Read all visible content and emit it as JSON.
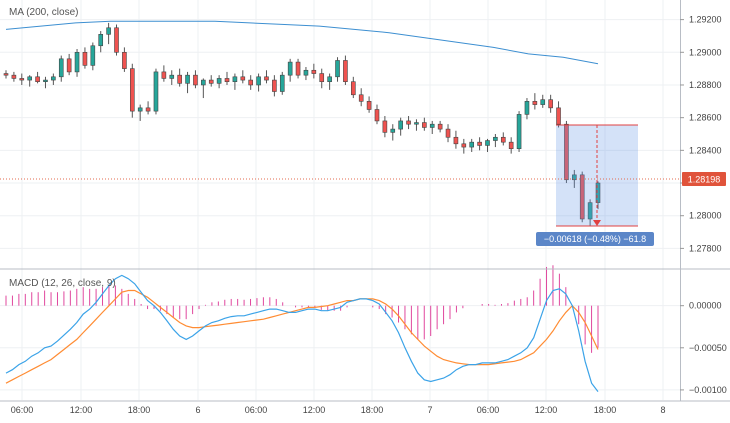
{
  "chart_data": [
    {
      "type": "candlestick",
      "indicator_label": "MA (200, close)",
      "x_tick_labels": [
        "06:00",
        "12:00",
        "18:00",
        "6",
        "06:00",
        "12:00",
        "18:00",
        "7",
        "06:00",
        "12:00",
        "18:00",
        "8"
      ],
      "y_tick_labels": [
        "1.29200",
        "1.29000",
        "1.28800",
        "1.28600",
        "1.28400",
        "1.28200",
        "1.28000",
        "1.27800"
      ],
      "ylim": [
        1.2768,
        1.2932
      ],
      "current_price": "1.28198",
      "measurement_label": "−0.00618 (−0.48%) −61.8",
      "measurement_range": {
        "from_price": 1.28555,
        "to_price": 1.27937
      },
      "ma_values": [
        1.2914,
        1.2916,
        1.2918,
        1.2919,
        1.2919,
        1.2919,
        1.2919,
        1.2918,
        1.2917,
        1.2916,
        1.2914,
        1.2912,
        1.2909,
        1.2906,
        1.2903,
        1.2899,
        1.2897,
        1.2893
      ],
      "candles": [
        [
          1.2887,
          1.2889,
          1.2884,
          1.2886
        ],
        [
          1.2886,
          1.2888,
          1.2882,
          1.2884
        ],
        [
          1.2884,
          1.2887,
          1.288,
          1.2883
        ],
        [
          1.2883,
          1.2886,
          1.2879,
          1.2885
        ],
        [
          1.2885,
          1.2888,
          1.2881,
          1.2882
        ],
        [
          1.2882,
          1.2885,
          1.2878,
          1.2883
        ],
        [
          1.2883,
          1.2887,
          1.288,
          1.2885
        ],
        [
          1.2885,
          1.2898,
          1.2882,
          1.2896
        ],
        [
          1.2896,
          1.2899,
          1.2886,
          1.2888
        ],
        [
          1.2888,
          1.2902,
          1.2885,
          1.29
        ],
        [
          1.29,
          1.2903,
          1.289,
          1.2892
        ],
        [
          1.2892,
          1.2906,
          1.2889,
          1.2904
        ],
        [
          1.2904,
          1.2913,
          1.29,
          1.2911
        ],
        [
          1.2911,
          1.2918,
          1.2905,
          1.2915
        ],
        [
          1.2915,
          1.2917,
          1.2898,
          1.29
        ],
        [
          1.29,
          1.2903,
          1.2888,
          1.289
        ],
        [
          1.289,
          1.2893,
          1.286,
          1.2864
        ],
        [
          1.2864,
          1.2868,
          1.2858,
          1.2866
        ],
        [
          1.2866,
          1.287,
          1.2862,
          1.2864
        ],
        [
          1.2864,
          1.289,
          1.2862,
          1.2888
        ],
        [
          1.2888,
          1.2892,
          1.2882,
          1.2884
        ],
        [
          1.2884,
          1.2889,
          1.288,
          1.2886
        ],
        [
          1.2886,
          1.289,
          1.2879,
          1.2881
        ],
        [
          1.2881,
          1.2888,
          1.2875,
          1.2886
        ],
        [
          1.2886,
          1.2889,
          1.2878,
          1.288
        ],
        [
          1.288,
          1.2884,
          1.2872,
          1.2883
        ],
        [
          1.2883,
          1.2886,
          1.2879,
          1.2881
        ],
        [
          1.2881,
          1.2886,
          1.2878,
          1.2884
        ],
        [
          1.2884,
          1.2888,
          1.288,
          1.2882
        ],
        [
          1.2882,
          1.2887,
          1.2877,
          1.2885
        ],
        [
          1.2885,
          1.2889,
          1.2881,
          1.2883
        ],
        [
          1.2883,
          1.2886,
          1.2877,
          1.288
        ],
        [
          1.288,
          1.2887,
          1.2876,
          1.2885
        ],
        [
          1.2885,
          1.2889,
          1.2881,
          1.2883
        ],
        [
          1.2883,
          1.2886,
          1.2873,
          1.2876
        ],
        [
          1.2876,
          1.2888,
          1.2874,
          1.2886
        ],
        [
          1.2886,
          1.2896,
          1.2882,
          1.2894
        ],
        [
          1.2894,
          1.2896,
          1.2884,
          1.2886
        ],
        [
          1.2886,
          1.2891,
          1.2883,
          1.2889
        ],
        [
          1.2889,
          1.2893,
          1.2884,
          1.2887
        ],
        [
          1.2887,
          1.289,
          1.2878,
          1.2882
        ],
        [
          1.2882,
          1.2887,
          1.2877,
          1.2885
        ],
        [
          1.2885,
          1.2897,
          1.2882,
          1.2895
        ],
        [
          1.2895,
          1.2898,
          1.288,
          1.2882
        ],
        [
          1.2882,
          1.2885,
          1.2872,
          1.2874
        ],
        [
          1.2874,
          1.2878,
          1.2867,
          1.287
        ],
        [
          1.287,
          1.2873,
          1.2863,
          1.2865
        ],
        [
          1.2865,
          1.2868,
          1.2856,
          1.2858
        ],
        [
          1.2858,
          1.2861,
          1.2848,
          1.2851
        ],
        [
          1.2851,
          1.2856,
          1.2846,
          1.2853
        ],
        [
          1.2853,
          1.286,
          1.2849,
          1.2858
        ],
        [
          1.2858,
          1.2861,
          1.2853,
          1.2856
        ],
        [
          1.2856,
          1.2859,
          1.2852,
          1.2857
        ],
        [
          1.2857,
          1.286,
          1.2852,
          1.2854
        ],
        [
          1.2854,
          1.2858,
          1.285,
          1.2856
        ],
        [
          1.2856,
          1.2858,
          1.2851,
          1.2853
        ],
        [
          1.2853,
          1.2856,
          1.2845,
          1.2848
        ],
        [
          1.2848,
          1.2852,
          1.2841,
          1.2844
        ],
        [
          1.2844,
          1.2847,
          1.2838,
          1.2842
        ],
        [
          1.2842,
          1.2847,
          1.2839,
          1.2845
        ],
        [
          1.2845,
          1.2848,
          1.284,
          1.2843
        ],
        [
          1.2843,
          1.2847,
          1.2839,
          1.2846
        ],
        [
          1.2846,
          1.285,
          1.2842,
          1.2848
        ],
        [
          1.2848,
          1.2851,
          1.2843,
          1.2845
        ],
        [
          1.2845,
          1.2848,
          1.2838,
          1.2841
        ],
        [
          1.2841,
          1.2864,
          1.2839,
          1.2862
        ],
        [
          1.2862,
          1.2872,
          1.2859,
          1.287
        ],
        [
          1.287,
          1.2875,
          1.2865,
          1.2868
        ],
        [
          1.2868,
          1.2874,
          1.2866,
          1.2871
        ],
        [
          1.2871,
          1.2874,
          1.2863,
          1.2866
        ],
        [
          1.2866,
          1.287,
          1.2854,
          1.2856
        ],
        [
          1.2856,
          1.2858,
          1.282,
          1.2822
        ],
        [
          1.2822,
          1.2828,
          1.2817,
          1.2825
        ],
        [
          1.2825,
          1.2827,
          1.2796,
          1.2798
        ],
        [
          1.2798,
          1.281,
          1.2794,
          1.2808
        ],
        [
          1.2808,
          1.2821,
          1.2804,
          1.282
        ]
      ],
      "macd": {
        "label": "MACD (12, 26, close, 9)",
        "y_tick_labels": [
          "0.00000",
          "−0.00050",
          "−0.00100"
        ],
        "ylim": [
          -0.00112,
          0.0004
        ],
        "macd_line": [
          -0.0008,
          -0.00076,
          -0.0007,
          -0.00066,
          -0.0006,
          -0.00056,
          -0.0005,
          -0.00048,
          -0.00042,
          -0.00035,
          -0.00028,
          -0.0002,
          -0.0001,
          -4e-05,
          4e-05,
          0.00014,
          0.00024,
          0.00032,
          0.00036,
          0.00032,
          0.00026,
          0.00016,
          6e-05,
          0.0,
          -8e-05,
          -0.00018,
          -0.00028,
          -0.00036,
          -0.0004,
          -0.00036,
          -0.0003,
          -0.00024,
          -0.0002,
          -0.00018,
          -0.00015,
          -0.00013,
          -0.00012,
          -0.00012,
          -0.0001,
          -8e-05,
          -6e-05,
          -4e-05,
          -4e-05,
          -6e-05,
          -8e-05,
          -8e-05,
          -6e-05,
          -4e-05,
          -4e-05,
          -6e-05,
          -6e-05,
          -4e-05,
          -2e-05,
          4e-05,
          6e-05,
          8e-05,
          8e-05,
          6e-05,
          2e-05,
          -8e-05,
          -0.00018,
          -0.00032,
          -0.0005,
          -0.00066,
          -0.0008,
          -0.00088,
          -0.0009,
          -0.00088,
          -0.00086,
          -0.00082,
          -0.00076,
          -0.00072,
          -0.0007,
          -0.0007,
          -0.00068,
          -0.00068,
          -0.00068,
          -0.00066,
          -0.00064,
          -0.0006,
          -0.00056,
          -0.0005,
          -0.00038,
          -0.00016,
          6e-05,
          0.00018,
          0.0002,
          0.00014,
          0.0,
          -0.0003,
          -0.00066,
          -0.00092,
          -0.00102
        ],
        "signal_line": [
          -0.00092,
          -0.00088,
          -0.00084,
          -0.0008,
          -0.00076,
          -0.00072,
          -0.00068,
          -0.00064,
          -0.00058,
          -0.00052,
          -0.00046,
          -0.0004,
          -0.00032,
          -0.00024,
          -0.00016,
          -8e-05,
          0.0,
          8e-05,
          0.00016,
          0.00018,
          0.00018,
          0.00014,
          0.0001,
          4e-05,
          -2e-05,
          -8e-05,
          -0.00014,
          -0.0002,
          -0.00024,
          -0.00026,
          -0.00026,
          -0.00025,
          -0.00024,
          -0.00023,
          -0.00022,
          -0.00021,
          -0.0002,
          -0.00019,
          -0.00018,
          -0.00017,
          -0.00016,
          -0.00014,
          -0.00012,
          -0.0001,
          -8e-05,
          -6e-05,
          -4e-05,
          -2e-05,
          -2e-05,
          -1e-05,
          0.0,
          2e-05,
          4e-05,
          6e-05,
          6e-05,
          8e-05,
          8e-05,
          8e-05,
          6e-05,
          2e-05,
          -4e-05,
          -0.00012,
          -0.00022,
          -0.00032,
          -0.0004,
          -0.00048,
          -0.00054,
          -0.0006,
          -0.00064,
          -0.00066,
          -0.00068,
          -0.00069,
          -0.0007,
          -0.0007,
          -0.0007,
          -0.0007,
          -0.00069,
          -0.00068,
          -0.00067,
          -0.00066,
          -0.00064,
          -0.0006,
          -0.00056,
          -0.00048,
          -0.0004,
          -0.0003,
          -0.00018,
          -8e-05,
          0.0,
          -8e-05,
          -0.0002,
          -0.00036,
          -0.00052
        ],
        "histogram": [
          0.00012,
          0.00012,
          0.00014,
          0.00014,
          0.00016,
          0.00016,
          0.00018,
          0.00016,
          0.00016,
          0.00017,
          0.00018,
          0.0002,
          0.00022,
          0.0002,
          0.0002,
          0.00022,
          0.00024,
          0.00024,
          0.0002,
          0.00014,
          8e-05,
          2e-05,
          -4e-05,
          -4e-05,
          -6e-05,
          -0.0001,
          -0.00014,
          -0.00016,
          -0.00016,
          -0.0001,
          -4e-05,
          1e-05,
          4e-05,
          5e-05,
          7e-05,
          8e-05,
          8e-05,
          7e-05,
          8e-05,
          9e-05,
          0.0001,
          0.0001,
          8e-05,
          4e-05,
          0.0,
          -2e-05,
          -2e-05,
          -2e-05,
          -2e-05,
          -5e-05,
          -6e-05,
          -6e-05,
          -6e-05,
          -2e-05,
          0.0,
          0.0,
          0.0,
          -2e-05,
          -4e-05,
          -0.0001,
          -0.00014,
          -0.0002,
          -0.00028,
          -0.00034,
          -0.0004,
          -0.0004,
          -0.00036,
          -0.00028,
          -0.00022,
          -0.00016,
          -8e-05,
          -3e-05,
          0.0,
          0.0,
          2e-05,
          2e-05,
          1e-05,
          2e-05,
          3e-05,
          6e-05,
          8e-05,
          0.0001,
          0.00018,
          0.00032,
          0.00046,
          0.00048,
          0.00038,
          0.00022,
          0.0,
          -0.00022,
          -0.00046,
          -0.00056,
          -0.0005
        ]
      }
    }
  ]
}
